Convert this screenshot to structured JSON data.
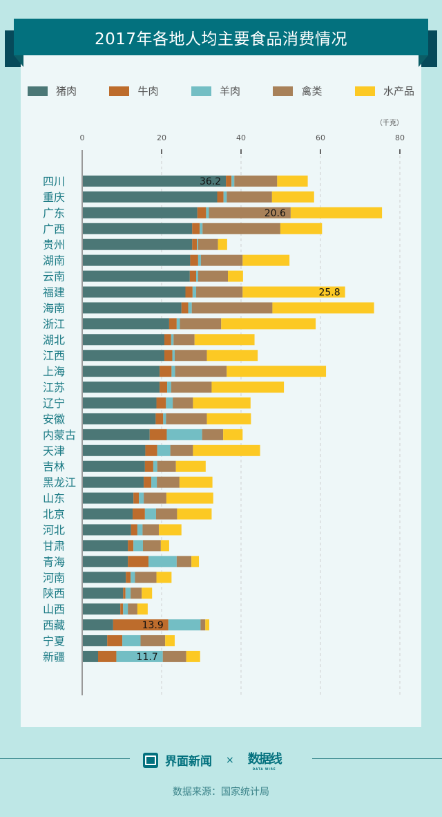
{
  "header": {
    "title": "2017年各地人均主要食品消费情况"
  },
  "colors": {
    "pork": "#4b7776",
    "beef": "#bd6c2c",
    "mutton": "#73bec4",
    "poultry": "#a88159",
    "aquatic": "#fcc924",
    "label": "#1a7a84",
    "background": "#bee7e6",
    "panel": "#eef7f8",
    "banner": "#03717e"
  },
  "legend": [
    {
      "key": "pork",
      "label": "猪肉"
    },
    {
      "key": "beef",
      "label": "牛肉"
    },
    {
      "key": "mutton",
      "label": "羊肉"
    },
    {
      "key": "poultry",
      "label": "禽类"
    },
    {
      "key": "aquatic",
      "label": "水产品"
    }
  ],
  "chart_data": {
    "type": "bar",
    "orientation": "horizontal",
    "stacked": true,
    "title": "2017年各地人均主要食品消费情况",
    "unit_label": "（千克）",
    "xlim": [
      0,
      80
    ],
    "xticks": [
      "0",
      "20",
      "40",
      "60",
      "80"
    ],
    "grid": true,
    "legend_position": "top",
    "categories": [
      "四川",
      "重庆",
      "广东",
      "广西",
      "贵州",
      "湖南",
      "云南",
      "福建",
      "海南",
      "浙江",
      "湖北",
      "江西",
      "上海",
      "江苏",
      "辽宁",
      "安徽",
      "内蒙古",
      "天津",
      "吉林",
      "黑龙江",
      "山东",
      "北京",
      "河北",
      "甘肃",
      "青海",
      "河南",
      "陕西",
      "山西",
      "西藏",
      "宁夏",
      "新疆"
    ],
    "series": [
      {
        "name": "猪肉",
        "key": "pork",
        "values": [
          36.2,
          34.0,
          29.0,
          27.7,
          27.7,
          27.2,
          27.1,
          26.0,
          25.0,
          21.9,
          20.7,
          20.7,
          19.5,
          19.5,
          18.7,
          18.5,
          17.0,
          15.9,
          15.8,
          15.5,
          12.9,
          12.7,
          12.3,
          11.5,
          11.5,
          11.0,
          10.3,
          9.6,
          7.8,
          6.3,
          4.0
        ]
      },
      {
        "name": "牛肉",
        "key": "beef",
        "values": [
          1.4,
          1.6,
          2.2,
          1.9,
          1.2,
          2.0,
          1.6,
          1.8,
          1.7,
          1.9,
          1.7,
          2.0,
          3.0,
          1.9,
          2.4,
          1.9,
          4.3,
          3.0,
          2.1,
          1.9,
          1.4,
          3.1,
          1.6,
          1.4,
          5.2,
          1.2,
          0.6,
          0.7,
          13.9,
          3.8,
          4.6
        ]
      },
      {
        "name": "羊肉",
        "key": "mutton",
        "values": [
          0.7,
          0.8,
          0.7,
          0.7,
          0.3,
          0.7,
          0.5,
          0.9,
          0.9,
          0.8,
          0.6,
          0.6,
          0.9,
          1.0,
          1.7,
          0.7,
          8.9,
          3.3,
          1.0,
          1.4,
          1.2,
          2.8,
          1.3,
          2.4,
          7.1,
          1.1,
          1.3,
          1.2,
          8.1,
          4.6,
          11.7
        ]
      },
      {
        "name": "禽类",
        "key": "poultry",
        "values": [
          10.8,
          11.4,
          20.6,
          19.6,
          5.0,
          10.5,
          7.5,
          11.7,
          20.3,
          10.4,
          5.3,
          8.1,
          13.0,
          10.2,
          5.1,
          10.3,
          5.3,
          5.7,
          4.7,
          5.7,
          5.7,
          5.3,
          4.1,
          4.5,
          3.7,
          5.4,
          2.8,
          2.4,
          1.2,
          6.2,
          5.9
        ]
      },
      {
        "name": "水产品",
        "key": "aquatic",
        "values": [
          7.7,
          10.6,
          23.0,
          10.5,
          2.3,
          11.8,
          3.8,
          25.8,
          25.6,
          23.8,
          15.1,
          12.8,
          25.0,
          18.2,
          14.5,
          11.1,
          4.9,
          16.9,
          7.5,
          8.3,
          11.8,
          8.7,
          5.7,
          2.1,
          1.9,
          3.8,
          2.6,
          2.6,
          1.0,
          2.4,
          3.5
        ]
      }
    ],
    "annotations": [
      {
        "category": "四川",
        "series": "猪肉",
        "text": "36.2"
      },
      {
        "category": "广东",
        "series": "禽类",
        "text": "20.6"
      },
      {
        "category": "福建",
        "series": "水产品",
        "text": "25.8"
      },
      {
        "category": "西藏",
        "series": "牛肉",
        "text": "13.9"
      },
      {
        "category": "新疆",
        "series": "羊肉",
        "text": "11.7"
      }
    ]
  },
  "footer": {
    "brand1": "界面新闻",
    "times": "×",
    "brand2": "数据线",
    "brand2_sub": "DATA WIRE",
    "source": "数据来源：国家统计局"
  }
}
